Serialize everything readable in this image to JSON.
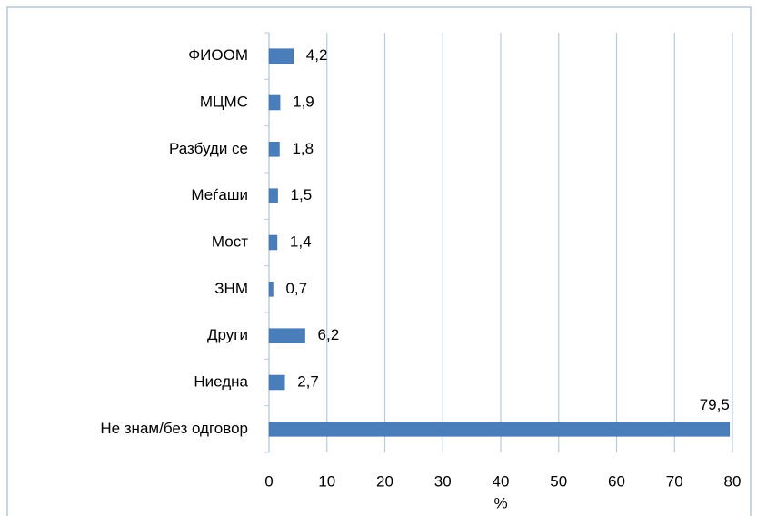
{
  "chart_data": {
    "type": "hbar",
    "categories": [
      "ФИООМ",
      "МЦМС",
      "Разбуди се",
      "Меѓаши",
      "Мост",
      "ЗНМ",
      "Други",
      "Ниедна",
      "Не знам/без одговор"
    ],
    "values": [
      4.2,
      1.9,
      1.8,
      1.5,
      1.4,
      0.7,
      6.2,
      2.7,
      79.5
    ],
    "value_labels": [
      "4,2",
      "1,9",
      "1,8",
      "1,5",
      "1,4",
      "0,7",
      "6,2",
      "2,7",
      "79,5"
    ],
    "color": "#4a7ebb",
    "xlim": [
      0,
      80
    ],
    "xticks": [
      0,
      10,
      20,
      30,
      40,
      50,
      60,
      70,
      80
    ],
    "xlabel": "%",
    "grid": true
  }
}
